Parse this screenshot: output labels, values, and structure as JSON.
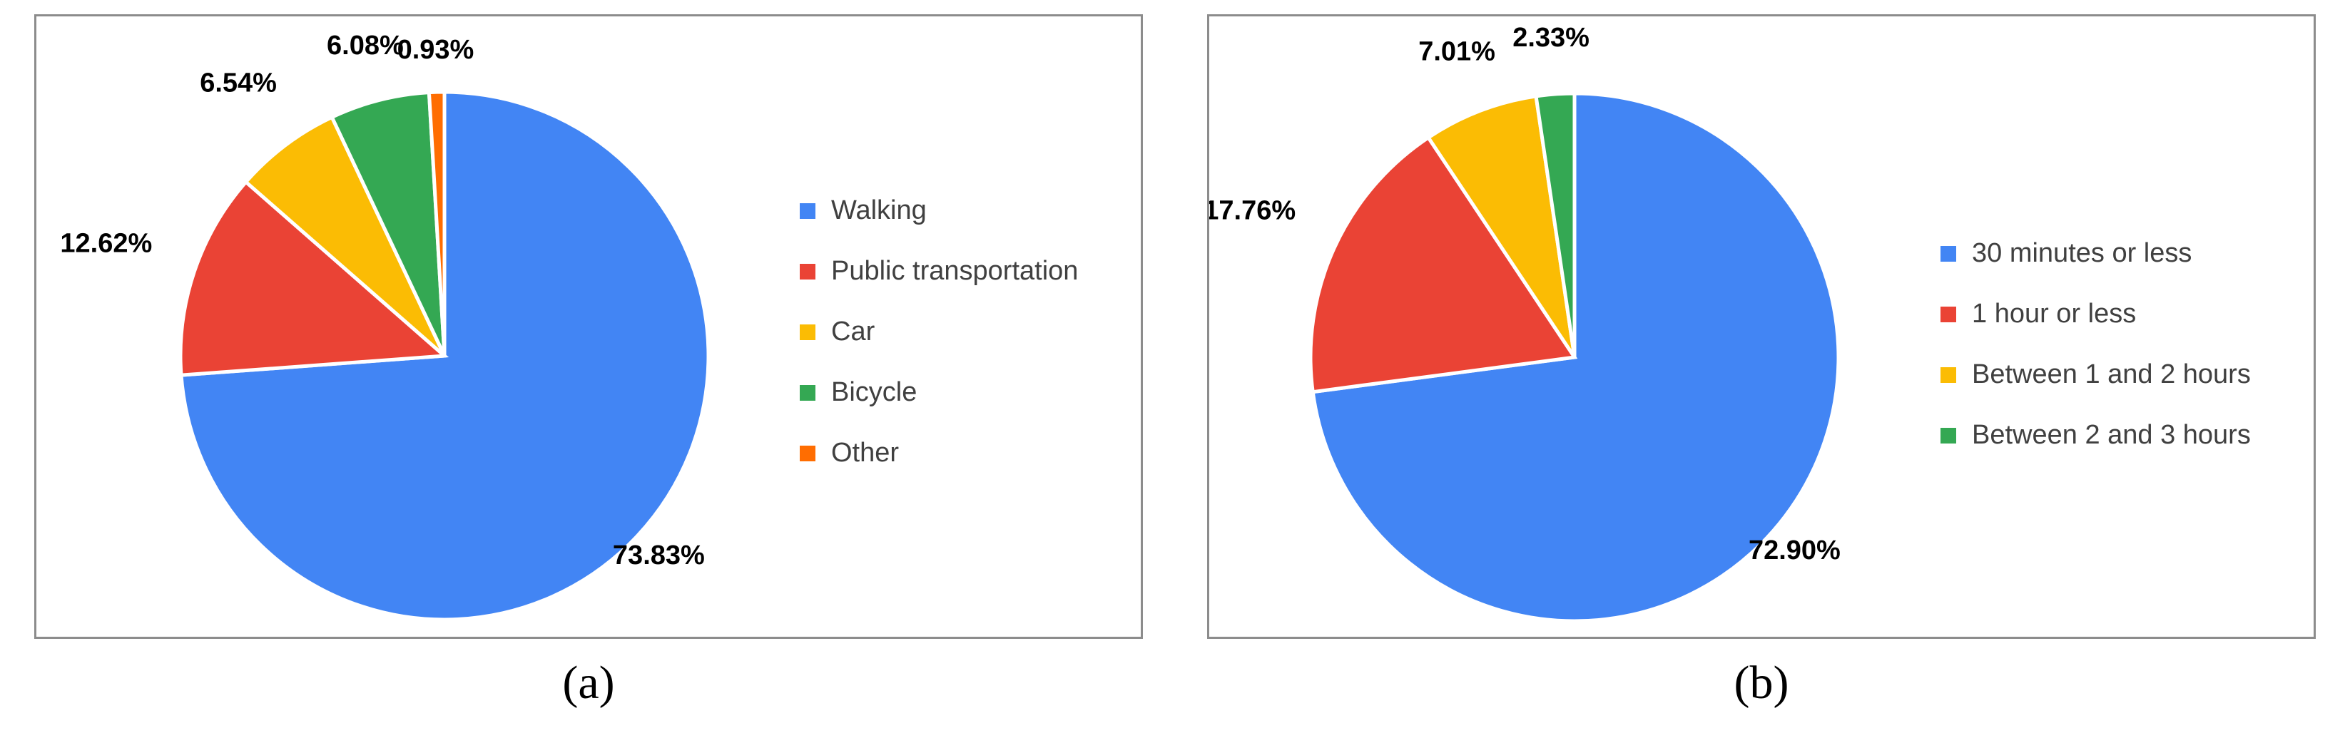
{
  "colors": [
    "#4285F4",
    "#EA4335",
    "#FBBC04",
    "#34A853",
    "#FF6D01"
  ],
  "chart_data": [
    {
      "type": "pie",
      "caption": "(a)",
      "title": "",
      "categories": [
        "Walking",
        "Public transportation",
        "Car",
        "Bicycle",
        "Other"
      ],
      "values": [
        73.83,
        12.62,
        6.54,
        6.08,
        0.93
      ],
      "value_labels": [
        "73.83%",
        "12.62%",
        "6.54%",
        "6.08%",
        "0.93%"
      ],
      "legend": "right",
      "start_angle": "12 o'clock",
      "direction": "clockwise"
    },
    {
      "type": "pie",
      "caption": "(b)",
      "title": "",
      "categories": [
        "30 minutes or less",
        "1 hour or less",
        "Between 1 and 2 hours",
        "Between 2 and 3 hours"
      ],
      "values": [
        72.9,
        17.76,
        7.01,
        2.33
      ],
      "value_labels": [
        "72.90%",
        "17.76%",
        "7.01%",
        "2.33%"
      ],
      "legend": "right",
      "start_angle": "12 o'clock",
      "direction": "clockwise"
    }
  ]
}
